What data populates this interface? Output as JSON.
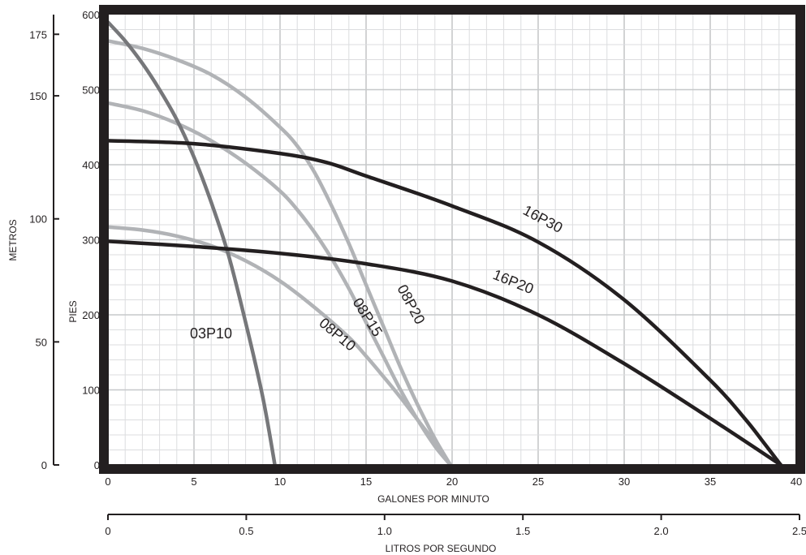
{
  "chart_data": {
    "type": "line",
    "xlabel": "GALONES POR MINUTO",
    "ylabel": "PIES",
    "xlim": [
      0,
      40
    ],
    "ylim": [
      0,
      600
    ],
    "x_ticks": [
      "0",
      "5",
      "10",
      "15",
      "20",
      "25",
      "30",
      "35",
      "40"
    ],
    "y_ticks": [
      "0",
      "100",
      "200",
      "300",
      "400",
      "500",
      "600"
    ],
    "grid": true,
    "secondary_x_axis": {
      "label": "LITROS POR SEGUNDO",
      "lim": [
        0,
        2.5
      ],
      "ticks": [
        "0",
        "0.5",
        "1.0",
        "1.5",
        "2.0",
        "2.5"
      ]
    },
    "secondary_y_axis": {
      "label": "METROS",
      "lim": [
        0,
        183
      ],
      "ticks": [
        "0",
        "50",
        "100",
        "150",
        "175"
      ]
    },
    "series": [
      {
        "name": "03P10",
        "color": "#76777a",
        "x": [
          0,
          1,
          2,
          3,
          4,
          5,
          6,
          7,
          8,
          9,
          9.7
        ],
        "y": [
          590,
          565,
          535,
          500,
          460,
          410,
          350,
          280,
          190,
          90,
          0
        ]
      },
      {
        "name": "08P20",
        "color": "#b1b3b6",
        "x": [
          0,
          2,
          4,
          6,
          8,
          10,
          11,
          12,
          13,
          14,
          15,
          16,
          17,
          18,
          19,
          19.9
        ],
        "y": [
          565,
          555,
          540,
          520,
          490,
          450,
          425,
          390,
          345,
          295,
          240,
          185,
          130,
          80,
          35,
          0
        ]
      },
      {
        "name": "08P15",
        "color": "#b1b3b6",
        "x": [
          0,
          2,
          4,
          6,
          8,
          10,
          11,
          12,
          13,
          14,
          15,
          16,
          17,
          18,
          19,
          19.9
        ],
        "y": [
          482,
          472,
          455,
          432,
          402,
          365,
          340,
          310,
          275,
          235,
          190,
          145,
          100,
          60,
          25,
          0
        ]
      },
      {
        "name": "08P10",
        "color": "#b1b3b6",
        "x": [
          0,
          2,
          4,
          6,
          8,
          10,
          12,
          14,
          15,
          16,
          17,
          18,
          19,
          19.9
        ],
        "y": [
          317,
          313,
          305,
          292,
          272,
          245,
          210,
          170,
          145,
          118,
          90,
          60,
          30,
          0
        ]
      },
      {
        "name": "16P30",
        "color": "#231f20",
        "x": [
          0,
          5,
          10,
          12.7,
          15,
          20,
          25,
          30,
          35,
          37,
          38,
          39.1
        ],
        "y": [
          432,
          428,
          415,
          403,
          385,
          345,
          297,
          220,
          113,
          62,
          33,
          0
        ]
      },
      {
        "name": "16P20",
        "color": "#231f20",
        "x": [
          0,
          5,
          10,
          15,
          20,
          25,
          30,
          35,
          39.1
        ],
        "y": [
          298,
          291,
          282,
          268,
          245,
          200,
          135,
          62,
          0
        ]
      }
    ]
  }
}
